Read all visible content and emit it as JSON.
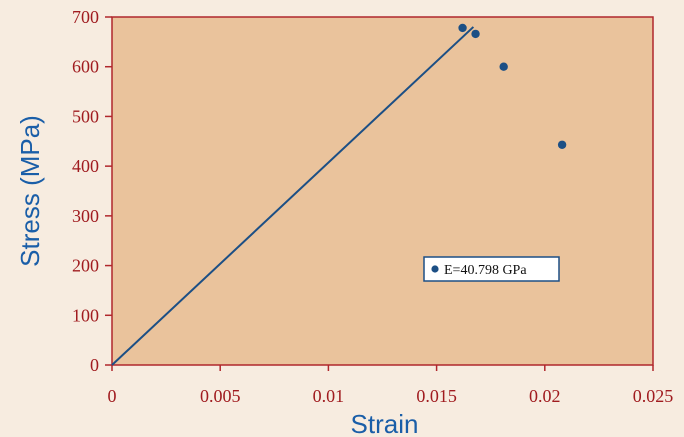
{
  "chart_data": {
    "type": "scatter",
    "title": "",
    "xlabel": "Strain",
    "ylabel": "Stress (MPa)",
    "xlim": [
      0,
      0.025
    ],
    "ylim": [
      0,
      700
    ],
    "x_ticks": [
      0,
      0.005,
      0.01,
      0.015,
      0.02,
      0.025
    ],
    "x_tick_labels": [
      "0",
      "0.005",
      "0.01",
      "0.015",
      "0.02",
      "0.025"
    ],
    "y_ticks": [
      0,
      100,
      200,
      300,
      400,
      500,
      600,
      700
    ],
    "y_tick_labels": [
      "0",
      "100",
      "200",
      "300",
      "400",
      "500",
      "600",
      "700"
    ],
    "grid": false,
    "legend_position": "center-right",
    "line": {
      "x": [
        0,
        0.0167
      ],
      "y": [
        0,
        680
      ]
    },
    "series": [
      {
        "name": "E=40.798 GPa",
        "x": [
          0.0162,
          0.0168,
          0.0181,
          0.0208
        ],
        "y": [
          678,
          666,
          600,
          443
        ]
      }
    ]
  },
  "colors": {
    "page_background": "#f7ece0",
    "plot_background": "#eac39c",
    "axis": "#b0272c",
    "tick_label": "#a01b1f",
    "axis_title": "#1a5ea8",
    "data": "#1c4f85"
  }
}
